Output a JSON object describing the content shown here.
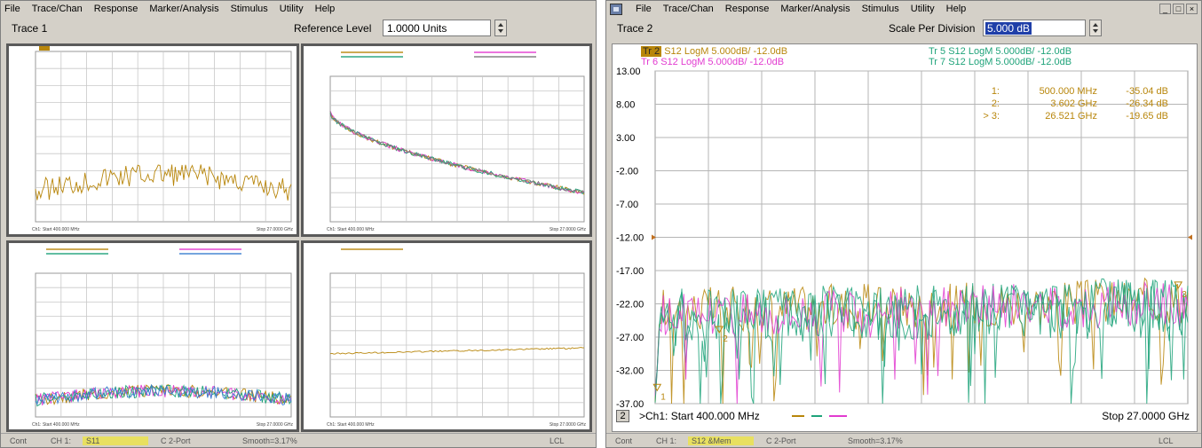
{
  "left": {
    "menu": [
      "File",
      "Trace/Chan",
      "Response",
      "Marker/Analysis",
      "Stimulus",
      "Utility",
      "Help"
    ],
    "trace_name": "Trace 1",
    "entry_label": "Reference Level",
    "entry_value": "1.0000 Units",
    "status": {
      "cont": "Cont",
      "channel": "CH 1:",
      "param": "S11",
      "port": "C 2-Port",
      "smooth": "Smooth=3.17%",
      "lcl": "LCL"
    },
    "panels": [
      {
        "footer_start": "Ch1: Start 400.000 MHz",
        "footer_stop": "Stop 27.0000 GHz"
      },
      {
        "footer_start": "Ch1: Start 400.000 MHz",
        "footer_stop": "Stop 27.0000 GHz"
      },
      {
        "footer_start": "Ch1: Start 400.000 MHz",
        "footer_stop": "Stop 27.0000 GHz"
      },
      {
        "footer_start": "Ch1: Start 400.000 MHz",
        "footer_stop": "Stop 27.0000 GHz"
      }
    ]
  },
  "right": {
    "menu": [
      "File",
      "Trace/Chan",
      "Response",
      "Marker/Analysis",
      "Stimulus",
      "Utility",
      "Help"
    ],
    "window_controls": [
      "_",
      "□",
      "×"
    ],
    "trace_name": "Trace 2",
    "entry_label": "Scale Per Division",
    "entry_value": "5.000 dB",
    "status": {
      "cont": "Cont",
      "channel": "CH 1:",
      "param": "S12 &Mem",
      "port": "C 2-Port",
      "smooth": "Smooth=3.17%",
      "lcl": "LCL"
    },
    "legend": [
      {
        "tag": "Tr 2",
        "text": "S12 LogM 5.000dB/  -12.0dB",
        "color": "#b8860b",
        "active": true
      },
      {
        "tag": "Tr 5",
        "text": "S12 LogM 5.000dB/  -12.0dB",
        "color": "#1fa37a",
        "active": false
      },
      {
        "tag": "Tr 6",
        "text": "S12 LogM 5.000dB/  -12.0dB",
        "color": "#e23bd0",
        "active": false
      },
      {
        "tag": "Tr 7",
        "text": "S12 LogM 5.000dB/  -12.0dB",
        "color": "#1fa37a",
        "active": false
      }
    ],
    "markers": [
      {
        "num": "1:",
        "freq": "500.000 MHz",
        "value": "-35.04 dB"
      },
      {
        "num": "2:",
        "freq": "3.602 GHz",
        "value": "-26.34 dB"
      },
      {
        "num": "> 3:",
        "freq": "26.521 GHz",
        "value": "-19.65 dB"
      }
    ],
    "channel_num": "2",
    "footer_start": ">Ch1: Start  400.000 MHz",
    "footer_stop": "Stop  27.0000 GHz"
  },
  "chart_data": {
    "type": "line",
    "y_ticks": [
      "13.00",
      "8.00",
      "3.00",
      "-2.00",
      "-7.00",
      "-12.00",
      "-17.00",
      "-22.00",
      "-27.00",
      "-32.00",
      "-37.00"
    ],
    "ylim": [
      -37,
      13
    ],
    "x_range_ghz": [
      0.4,
      27.0
    ],
    "reference_level_db": -12.0,
    "series": [
      {
        "name": "Tr 2",
        "color": "#b8860b",
        "mean_db": -23,
        "ripple_db": 3.5
      },
      {
        "name": "Tr 5",
        "color": "#1fa37a",
        "mean_db": -24,
        "ripple_db": 4.5
      },
      {
        "name": "Tr 6",
        "color": "#e23bd0",
        "mean_db": -23.5,
        "ripple_db": 3.5
      },
      {
        "name": "Tr 7",
        "color": "#1fa37a",
        "mean_db": -23.8,
        "ripple_db": 4
      }
    ],
    "markers_ghz": [
      {
        "label": "1",
        "x": 0.5,
        "y": -35.04
      },
      {
        "label": "2",
        "x": 3.602,
        "y": -26.34
      },
      {
        "label": "3",
        "x": 26.521,
        "y": -19.65
      }
    ]
  }
}
